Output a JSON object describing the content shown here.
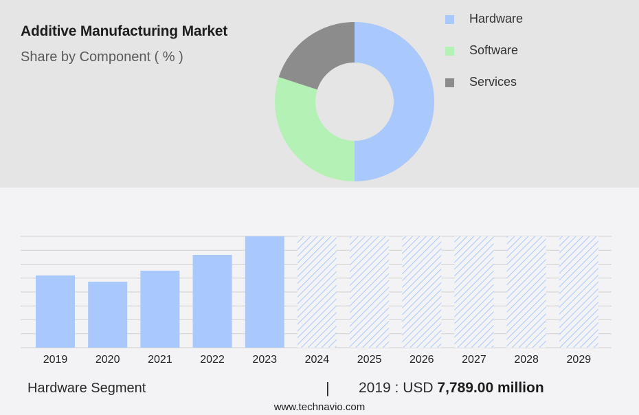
{
  "header": {
    "title": "Additive Manufacturing Market",
    "subtitle": "Share by Component ( % )"
  },
  "legend": {
    "items": [
      {
        "label": "Hardware",
        "color": "#a9c8fb"
      },
      {
        "label": "Software",
        "color": "#b4f1b4"
      },
      {
        "label": "Services",
        "color": "#8c8c8c"
      }
    ]
  },
  "chart_data": [
    {
      "type": "pie",
      "title": "Share by Component ( % )",
      "categories": [
        "Hardware",
        "Software",
        "Services"
      ],
      "values": [
        50,
        30,
        20
      ],
      "colors": [
        "#a9c8fb",
        "#b4f1b4",
        "#8c8c8c"
      ],
      "legend": "right"
    },
    {
      "type": "bar",
      "categories": [
        "2019",
        "2020",
        "2021",
        "2022",
        "2023",
        "2024",
        "2025",
        "2026",
        "2027",
        "2028",
        "2029"
      ],
      "values": [
        7789,
        7100,
        8300,
        10000,
        12000,
        null,
        null,
        null,
        null,
        null,
        null
      ],
      "forecast_categories": [
        "2024",
        "2025",
        "2026",
        "2027",
        "2028",
        "2029"
      ],
      "ylim": [
        0,
        12000
      ],
      "grid": true,
      "color": "#a9c8fb"
    }
  ],
  "footer": {
    "segment_label": "Hardware Segment",
    "divider": "|",
    "value_prefix": "2019 : USD",
    "value_number": "7,789.00 million",
    "source": "www.technavio.com"
  }
}
